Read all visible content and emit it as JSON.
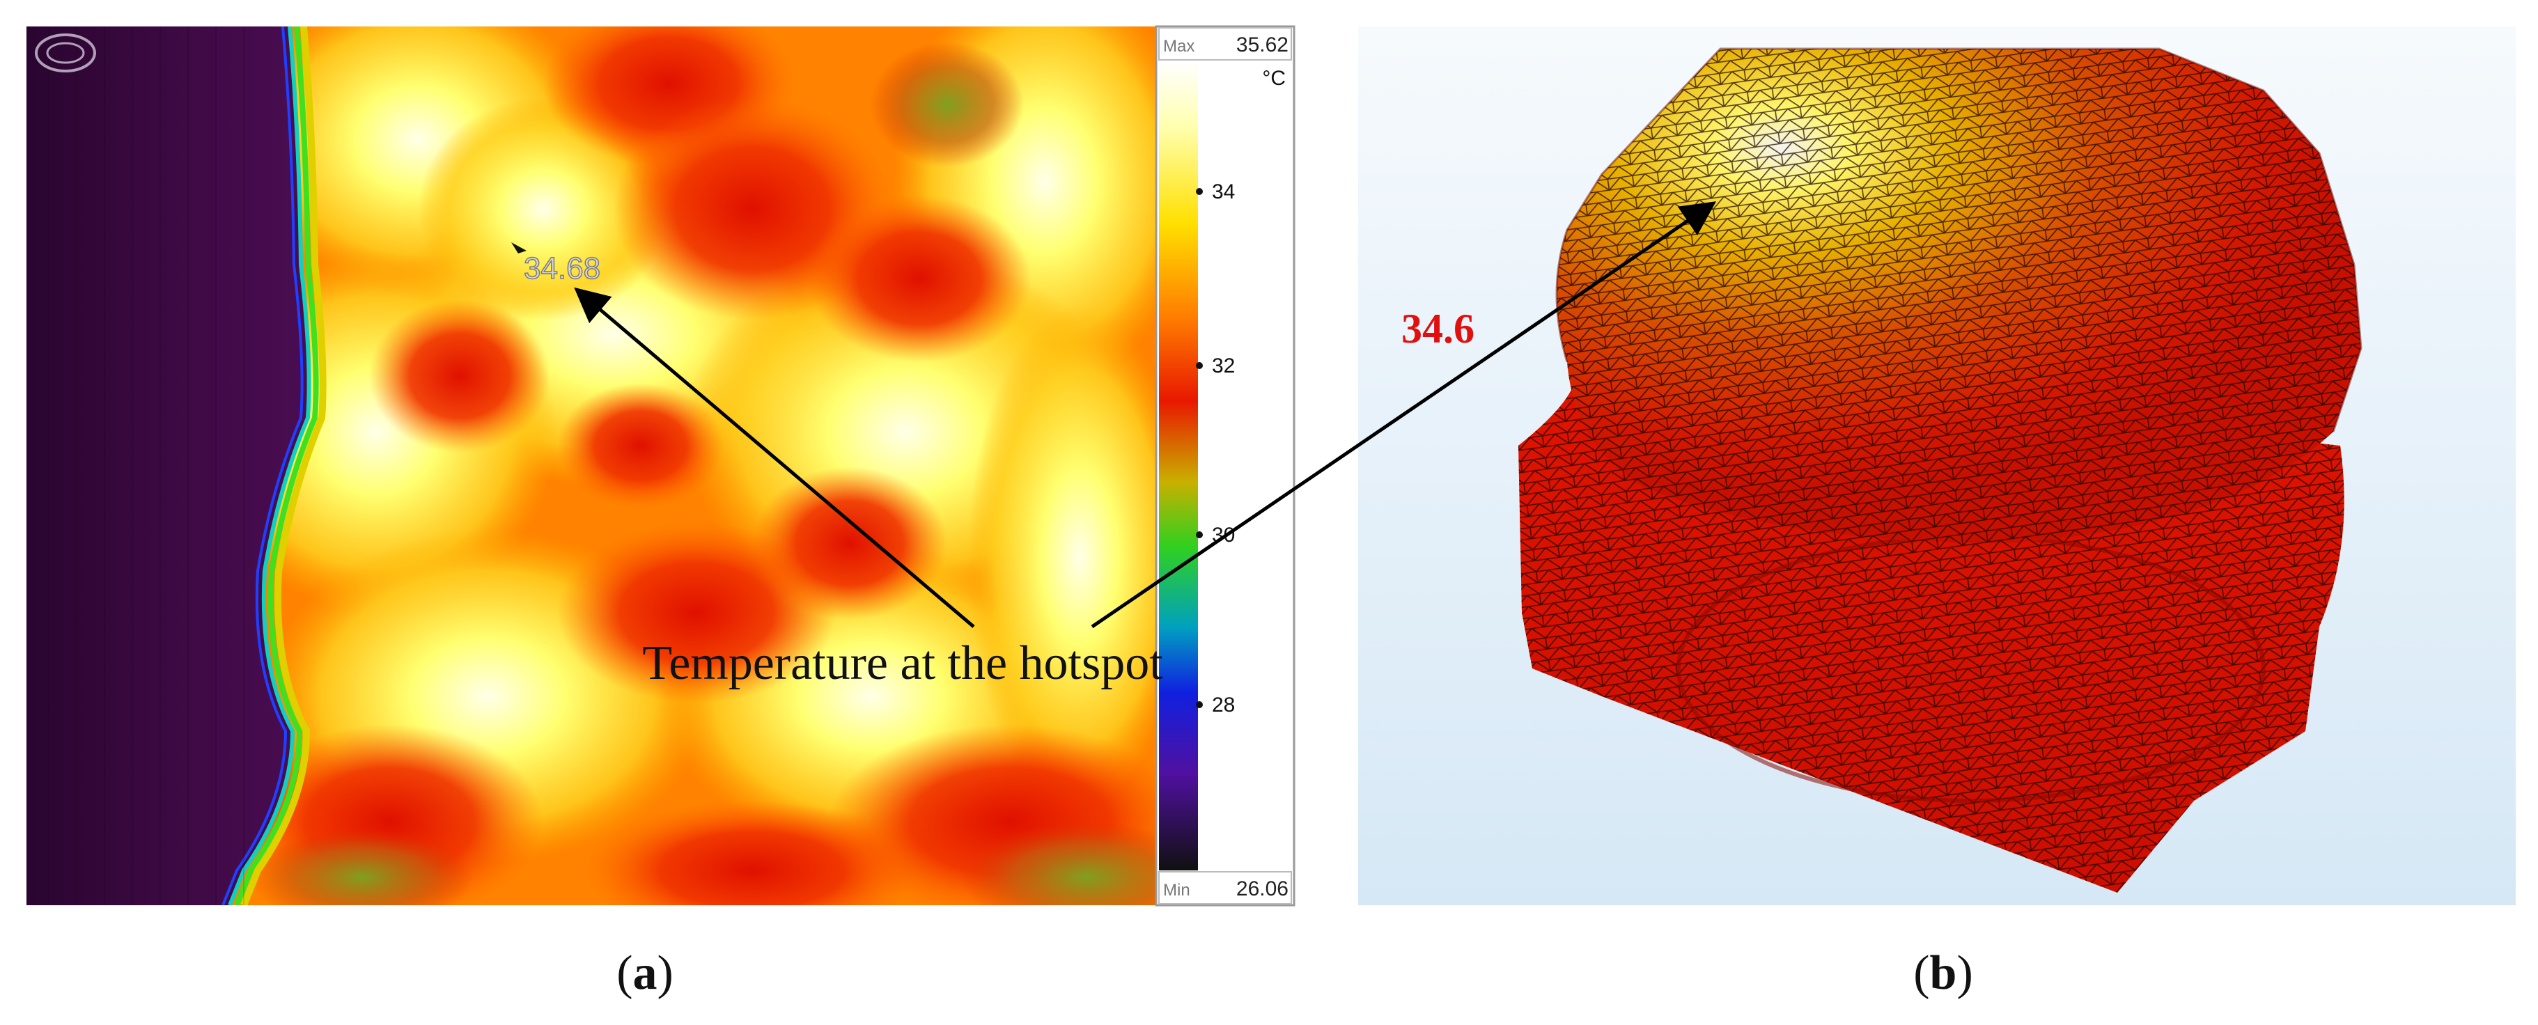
{
  "panel_a": {
    "label_open": "(",
    "label_letter": "a",
    "label_close": ")",
    "scale": {
      "max_label": "Max",
      "max_value": "35.62",
      "unit": "°C",
      "ticks": [
        "34",
        "32",
        "30",
        "28"
      ],
      "min_label": "Min",
      "min_value": "26.06"
    },
    "hotspot_reading": "34.68",
    "annotation": "Temperature at the hotspot"
  },
  "panel_b": {
    "label_open": "(",
    "label_letter": "b",
    "label_close": ")",
    "hotspot_value": "34.6"
  },
  "colors": {
    "hot_white": "#ffffe0",
    "yellow": "#ffff40",
    "orange": "#ff8a00",
    "red": "#ee1a00",
    "mesh_red": "#dd1500",
    "purple_bg": "#3a0838",
    "annotation_red": "#e01010",
    "model_bg": "#e2eef8"
  }
}
